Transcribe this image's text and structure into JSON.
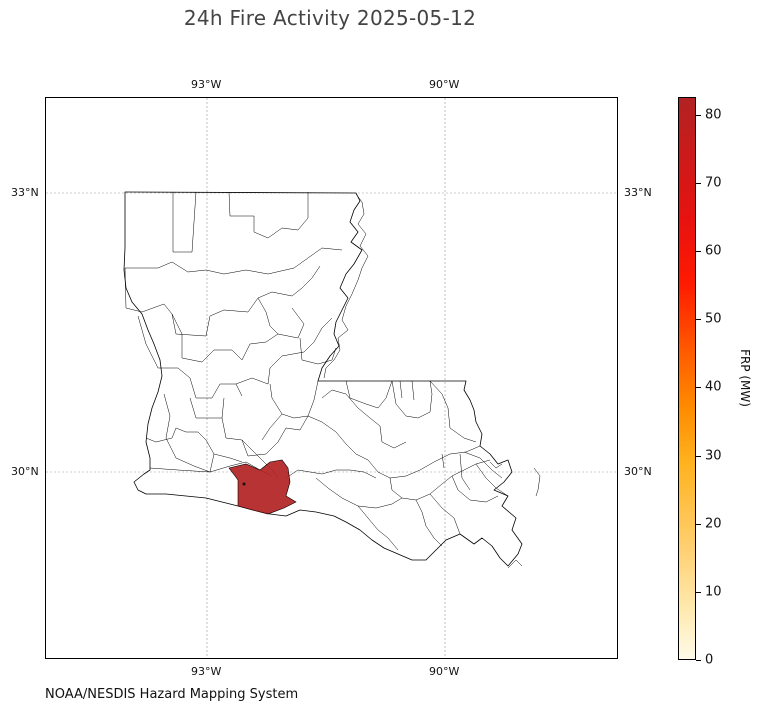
{
  "title": "24h Fire Activity 2025-05-12",
  "source": "NOAA/NESDIS Hazard Mapping System",
  "map": {
    "lon_ticks": [
      "93°W",
      "90°W"
    ],
    "lat_ticks": [
      "33°N",
      "30°N"
    ],
    "highlight_color": "#b22222"
  },
  "colorbar": {
    "label": "FRP (MW)",
    "ticks": [
      "0",
      "10",
      "20",
      "30",
      "40",
      "50",
      "60",
      "70",
      "80"
    ],
    "min": 0,
    "max": 82.6,
    "colors": [
      "#fffbe8",
      "#ffcf70",
      "#ff8a00",
      "#ff1a00",
      "#b22222"
    ]
  }
}
